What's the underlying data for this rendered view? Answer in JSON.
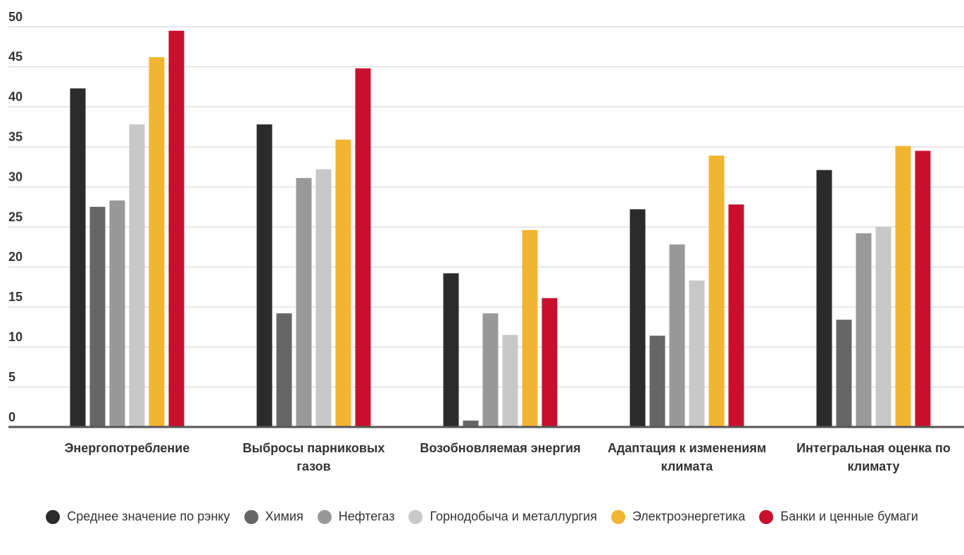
{
  "chart_data": {
    "type": "bar",
    "categories": [
      "Энергопотребление",
      "Выбросы парниковых газов",
      "Возобновляемая энергия",
      "Адаптация к изменениям климата",
      "Интегральная оценка по климату"
    ],
    "series": [
      {
        "name": "Среднее значение по рэнку",
        "color": "#2b2b2b",
        "values": [
          42.3,
          37.8,
          19.2,
          27.2,
          32.1
        ]
      },
      {
        "name": "Химия",
        "color": "#666666",
        "values": [
          27.5,
          14.2,
          0.8,
          11.4,
          13.4
        ]
      },
      {
        "name": "Нефтегаз",
        "color": "#999999",
        "values": [
          28.3,
          31.1,
          14.2,
          22.8,
          24.2
        ]
      },
      {
        "name": "Горнодобыча и металлургия",
        "color": "#c8c8c8",
        "values": [
          37.8,
          32.2,
          11.5,
          18.3,
          25.0
        ]
      },
      {
        "name": "Электроэнергетика",
        "color": "#f2b532",
        "values": [
          46.2,
          35.9,
          24.6,
          33.9,
          35.1
        ]
      },
      {
        "name": "Банки и ценные бумаги",
        "color": "#c8102e",
        "values": [
          49.5,
          44.8,
          16.1,
          27.8,
          34.5
        ]
      }
    ],
    "ylim": [
      0,
      50
    ],
    "yticks": [
      0,
      5,
      10,
      15,
      20,
      25,
      30,
      35,
      40,
      45,
      50
    ],
    "grid": true,
    "legend": "bottom"
  }
}
